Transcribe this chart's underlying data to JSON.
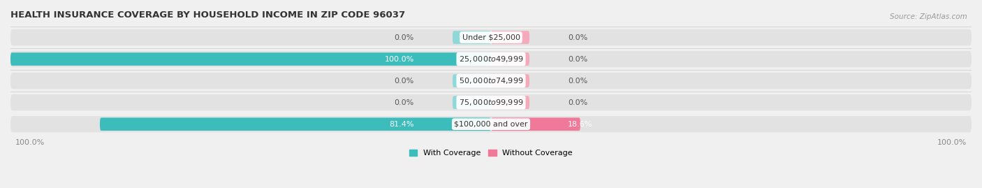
{
  "title": "HEALTH INSURANCE COVERAGE BY HOUSEHOLD INCOME IN ZIP CODE 96037",
  "source": "Source: ZipAtlas.com",
  "categories": [
    "Under $25,000",
    "$25,000 to $49,999",
    "$50,000 to $74,999",
    "$75,000 to $99,999",
    "$100,000 and over"
  ],
  "with_coverage": [
    0.0,
    100.0,
    0.0,
    0.0,
    81.4
  ],
  "without_coverage": [
    0.0,
    0.0,
    0.0,
    0.0,
    18.6
  ],
  "with_coverage_color": "#3DBCBC",
  "without_coverage_color": "#F07898",
  "with_coverage_zero_color": "#90D8D8",
  "without_coverage_zero_color": "#F4AABB",
  "background_color": "#f0f0f0",
  "bar_bg_color": "#e2e2e2",
  "label_fontsize": 8,
  "title_fontsize": 9.5,
  "source_fontsize": 7.5,
  "axis_label_fontsize": 8,
  "legend_fontsize": 8,
  "zero_bar_size": 8.0,
  "xlim_left": -100,
  "xlim_right": 100,
  "axis_left_label": "100.0%",
  "axis_right_label": "100.0%"
}
